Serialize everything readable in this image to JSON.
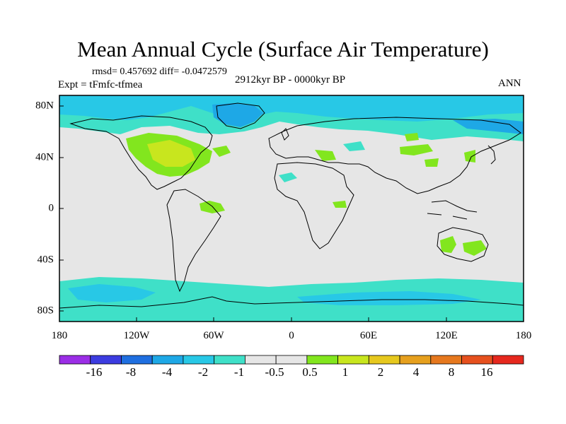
{
  "title": "Mean Annual Cycle (Surface Air Temperature)",
  "stats": "rmsd= 0.457692 diff= -0.0472579",
  "experiment": "Expt = tFmfc-tfmea",
  "period": "2912kyr BP - 0000kyr BP",
  "season": "ANN",
  "x_ticks": [
    "180",
    "120W",
    "60W",
    "0",
    "60E",
    "120E",
    "180"
  ],
  "y_ticks": [
    "80N",
    "40N",
    "0",
    "40S",
    "80S"
  ],
  "colorbar": {
    "colors": [
      "#9b2ee6",
      "#3c3ce0",
      "#1f6fe0",
      "#1ea8e6",
      "#28c8e6",
      "#3fe0c8",
      "#e6e6e6",
      "#e6e6e6",
      "#82e61e",
      "#c8e61e",
      "#e6c81e",
      "#e6a01e",
      "#e6781e",
      "#e6501e",
      "#e6281e"
    ],
    "labels": [
      "-16",
      "-8",
      "-4",
      "-2",
      "-1",
      "-0.5",
      "0.5",
      "1",
      "2",
      "4",
      "8",
      "16"
    ]
  }
}
